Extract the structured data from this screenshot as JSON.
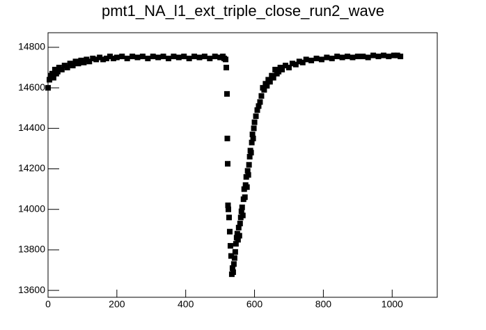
{
  "chart_data": {
    "type": "scatter",
    "title": "pmt1_NA_l1_ext_triple_close_run2_wave",
    "xlim": [
      0,
      1131
    ],
    "ylim": [
      13566,
      14872
    ],
    "xticks": [
      0,
      200,
      400,
      600,
      800,
      1000
    ],
    "yticks": [
      13600,
      13800,
      14000,
      14200,
      14400,
      14600,
      14800
    ],
    "color": "#000000",
    "x": [
      0,
      4,
      8,
      12,
      16,
      20,
      24,
      28,
      32,
      40,
      48,
      56,
      64,
      72,
      80,
      88,
      96,
      104,
      112,
      120,
      130,
      140,
      150,
      160,
      170,
      180,
      190,
      200,
      215,
      230,
      245,
      260,
      275,
      290,
      305,
      320,
      335,
      350,
      365,
      380,
      395,
      410,
      425,
      440,
      455,
      470,
      485,
      500,
      508,
      512,
      516,
      518,
      520,
      521,
      522,
      523,
      524,
      526,
      528,
      530,
      532,
      534,
      536,
      538,
      540,
      542,
      544,
      546,
      548,
      550,
      552,
      554,
      556,
      558,
      560,
      562,
      564,
      566,
      568,
      570,
      572,
      574,
      576,
      578,
      580,
      582,
      584,
      586,
      588,
      590,
      592,
      594,
      596,
      598,
      600,
      604,
      608,
      612,
      616,
      620,
      624,
      628,
      632,
      636,
      640,
      645,
      650,
      655,
      660,
      665,
      670,
      675,
      680,
      690,
      700,
      710,
      720,
      730,
      740,
      750,
      765,
      780,
      795,
      810,
      825,
      840,
      855,
      870,
      885,
      900,
      915,
      930,
      945,
      960,
      975,
      990,
      1005,
      1015,
      1024
    ],
    "y": [
      14600,
      14640,
      14660,
      14670,
      14650,
      14690,
      14670,
      14680,
      14700,
      14690,
      14710,
      14700,
      14720,
      14710,
      14730,
      14720,
      14735,
      14725,
      14740,
      14730,
      14745,
      14740,
      14750,
      14740,
      14745,
      14755,
      14745,
      14750,
      14755,
      14745,
      14755,
      14750,
      14755,
      14745,
      14755,
      14750,
      14755,
      14745,
      14755,
      14750,
      14755,
      14745,
      14755,
      14750,
      14755,
      14745,
      14755,
      14750,
      14755,
      14745,
      14740,
      14700,
      14570,
      14350,
      14225,
      14020,
      14000,
      13960,
      13890,
      13820,
      13770,
      13680,
      13710,
      13690,
      13730,
      13760,
      13790,
      13830,
      13860,
      13880,
      13850,
      13910,
      13870,
      13930,
      13960,
      13990,
      14010,
      13970,
      14050,
      14100,
      14060,
      14120,
      14160,
      14110,
      14190,
      14170,
      14220,
      14260,
      14290,
      14280,
      14330,
      14370,
      14350,
      14400,
      14430,
      14460,
      14490,
      14510,
      14530,
      14560,
      14600,
      14590,
      14620,
      14610,
      14640,
      14630,
      14660,
      14650,
      14690,
      14670,
      14680,
      14700,
      14690,
      14710,
      14700,
      14720,
      14715,
      14730,
      14725,
      14740,
      14735,
      14745,
      14740,
      14750,
      14745,
      14755,
      14750,
      14755,
      14750,
      14755,
      14755,
      14750,
      14760,
      14755,
      14760,
      14755,
      14760,
      14760,
      14755
    ]
  }
}
